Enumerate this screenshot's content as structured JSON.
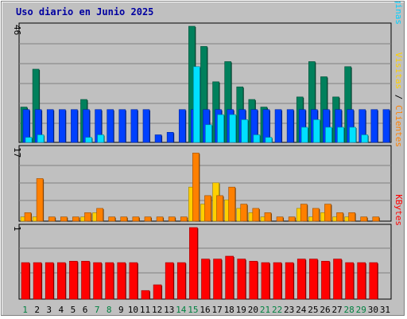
{
  "chart_data": {
    "type": "bar",
    "title": "Uso diario en Junio 2025",
    "categories": [
      "1",
      "2",
      "3",
      "4",
      "5",
      "6",
      "7",
      "8",
      "9",
      "10",
      "11",
      "12",
      "13",
      "14",
      "15",
      "16",
      "17",
      "18",
      "19",
      "20",
      "21",
      "22",
      "23",
      "24",
      "25",
      "26",
      "27",
      "28",
      "29",
      "30",
      "31"
    ],
    "weekend_days": [
      "1",
      "7",
      "8",
      "14",
      "15",
      "21",
      "22",
      "28",
      "29"
    ],
    "panels": [
      {
        "id": "top",
        "ymax_label": "46",
        "ymax": 46,
        "labels": [
          {
            "text": "Accesos",
            "color": "#008040"
          },
          {
            "text": " / ",
            "color": "#000000"
          },
          {
            "text": "Archivos",
            "color": "#0040ff"
          },
          {
            "text": " / ",
            "color": "#000000"
          },
          {
            "text": "Páginas",
            "color": "#00d0ff"
          }
        ],
        "series": [
          {
            "name": "Accesos",
            "color": "#00805c",
            "values": [
              14,
              29,
              0,
              0,
              0,
              17,
              0,
              0,
              0,
              0,
              0,
              0,
              0,
              0,
              46,
              38,
              24,
              32,
              22,
              17,
              14,
              0,
              0,
              18,
              32,
              26,
              18,
              30,
              0,
              0,
              0
            ]
          },
          {
            "name": "Archivos",
            "color": "#0040ff",
            "values": [
              13,
              13,
              13,
              13,
              13,
              13,
              13,
              13,
              13,
              13,
              13,
              3,
              4,
              13,
              13,
              13,
              13,
              13,
              13,
              13,
              13,
              13,
              13,
              13,
              13,
              13,
              13,
              13,
              13,
              13,
              13
            ]
          },
          {
            "name": "Páginas",
            "color": "#00e0ff",
            "values": [
              2,
              3,
              0,
              0,
              0,
              2,
              3,
              0,
              0,
              0,
              0,
              0,
              0,
              0,
              30,
              7,
              11,
              11,
              9,
              3,
              2,
              0,
              0,
              6,
              9,
              6,
              6,
              6,
              3,
              0,
              0
            ]
          }
        ]
      },
      {
        "id": "middle",
        "ymax_label": "17",
        "ymax": 17,
        "labels": [
          {
            "text": "Visitas",
            "color": "#ffd000"
          },
          {
            "text": " / ",
            "color": "#000000"
          },
          {
            "text": "Clientes",
            "color": "#ff8000"
          }
        ],
        "series": [
          {
            "name": "Visitas",
            "color": "#ffd000",
            "values": [
              1,
              1,
              0,
              0,
              0,
              1,
              2,
              0,
              0,
              0,
              0,
              0,
              0,
              0,
              8,
              4,
              9,
              5,
              3,
              2,
              1,
              0,
              0,
              3,
              1,
              2,
              1,
              1,
              0,
              0,
              0
            ]
          },
          {
            "name": "Clientes",
            "color": "#ff8000",
            "values": [
              2,
              10,
              1,
              1,
              1,
              2,
              3,
              1,
              1,
              1,
              1,
              1,
              1,
              1,
              16,
              6,
              6,
              8,
              4,
              3,
              2,
              1,
              1,
              4,
              3,
              4,
              2,
              2,
              1,
              1,
              0
            ]
          }
        ]
      },
      {
        "id": "bottom",
        "ymax_label": "1",
        "ymax": 1,
        "labels": [
          {
            "text": "KBytes",
            "color": "#ff0000"
          }
        ],
        "series": [
          {
            "name": "KBytes",
            "color": "#ff0000",
            "values": [
              0.51,
              0.51,
              0.51,
              0.51,
              0.53,
              0.53,
              0.51,
              0.51,
              0.51,
              0.51,
              0.12,
              0.2,
              0.51,
              0.51,
              1.0,
              0.56,
              0.56,
              0.6,
              0.56,
              0.53,
              0.51,
              0.51,
              0.51,
              0.56,
              0.56,
              0.53,
              0.56,
              0.51,
              0.51,
              0.51,
              0
            ]
          }
        ]
      }
    ]
  }
}
